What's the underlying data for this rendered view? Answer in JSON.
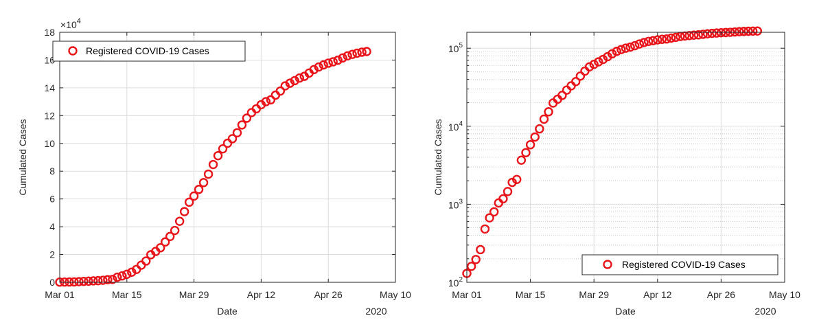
{
  "chart_data": [
    {
      "type": "scatter",
      "xlabel": "Date",
      "ylabel": "Cumulated Cases",
      "x_tick_labels": [
        "Mar 01",
        "Mar 15",
        "Mar 29",
        "Apr 12",
        "Apr 26",
        "May 10"
      ],
      "x_year_label": "2020",
      "xlim": [
        "2020-03-01",
        "2020-05-10"
      ],
      "ylim": [
        0,
        180000
      ],
      "yscale": "linear",
      "y_tick_labels": [
        "0",
        "2",
        "4",
        "6",
        "8",
        "10",
        "12",
        "14",
        "16",
        "18"
      ],
      "y_exponent": {
        "base": "×10",
        "power": "4"
      },
      "grid": true,
      "legend": {
        "position": "top-left",
        "entries": [
          "Registered COVID-19 Cases"
        ]
      },
      "marker_color": "#e8141a",
      "series": [
        {
          "name": "Registered COVID-19 Cases",
          "x": [
            "2020-03-01",
            "2020-03-02",
            "2020-03-03",
            "2020-03-04",
            "2020-03-05",
            "2020-03-06",
            "2020-03-07",
            "2020-03-08",
            "2020-03-09",
            "2020-03-10",
            "2020-03-11",
            "2020-03-12",
            "2020-03-13",
            "2020-03-14",
            "2020-03-15",
            "2020-03-16",
            "2020-03-17",
            "2020-03-18",
            "2020-03-19",
            "2020-03-20",
            "2020-03-21",
            "2020-03-22",
            "2020-03-23",
            "2020-03-24",
            "2020-03-25",
            "2020-03-26",
            "2020-03-27",
            "2020-03-28",
            "2020-03-29",
            "2020-03-30",
            "2020-03-31",
            "2020-04-01",
            "2020-04-02",
            "2020-04-03",
            "2020-04-04",
            "2020-04-05",
            "2020-04-06",
            "2020-04-07",
            "2020-04-08",
            "2020-04-09",
            "2020-04-10",
            "2020-04-11",
            "2020-04-12",
            "2020-04-13",
            "2020-04-14",
            "2020-04-15",
            "2020-04-16",
            "2020-04-17",
            "2020-04-18",
            "2020-04-19",
            "2020-04-20",
            "2020-04-21",
            "2020-04-22",
            "2020-04-23",
            "2020-04-24",
            "2020-04-25",
            "2020-04-26",
            "2020-04-27",
            "2020-04-28",
            "2020-04-29",
            "2020-04-30",
            "2020-05-01",
            "2020-05-02",
            "2020-05-03",
            "2020-05-04"
          ],
          "y": [
            130,
            160,
            196,
            262,
            482,
            670,
            800,
            1040,
            1176,
            1457,
            1908,
            2078,
            3675,
            4585,
            5795,
            7272,
            9257,
            12327,
            15320,
            19848,
            22213,
            24873,
            29056,
            32986,
            37323,
            43938,
            50871,
            57695,
            62095,
            66885,
            71808,
            77872,
            84794,
            91159,
            96092,
            100123,
            103375,
            107663,
            113296,
            118181,
            122171,
            124908,
            127854,
            130072,
            131359,
            134753,
            137698,
            141397,
            143342,
            145184,
            147065,
            148291,
            150648,
            153129,
            154999,
            156513,
            157770,
            158758,
            159912,
            161539,
            163009,
            164077,
            164967,
            165664,
            166152
          ]
        }
      ]
    },
    {
      "type": "scatter",
      "xlabel": "Date",
      "ylabel": "Cumulated Cases",
      "x_tick_labels": [
        "Mar 01",
        "Mar 15",
        "Mar 29",
        "Apr 12",
        "Apr 26",
        "May 10"
      ],
      "x_year_label": "2020",
      "xlim": [
        "2020-03-01",
        "2020-05-10"
      ],
      "ylim": [
        100,
        160000
      ],
      "yscale": "log",
      "y_tick_labels": [
        {
          "base": "10",
          "power": "2"
        },
        {
          "base": "10",
          "power": "3"
        },
        {
          "base": "10",
          "power": "4"
        },
        {
          "base": "10",
          "power": "5"
        }
      ],
      "grid": true,
      "legend": {
        "position": "bottom-right",
        "entries": [
          "Registered COVID-19 Cases"
        ]
      },
      "marker_color": "#e8141a",
      "series_ref": 0
    }
  ]
}
